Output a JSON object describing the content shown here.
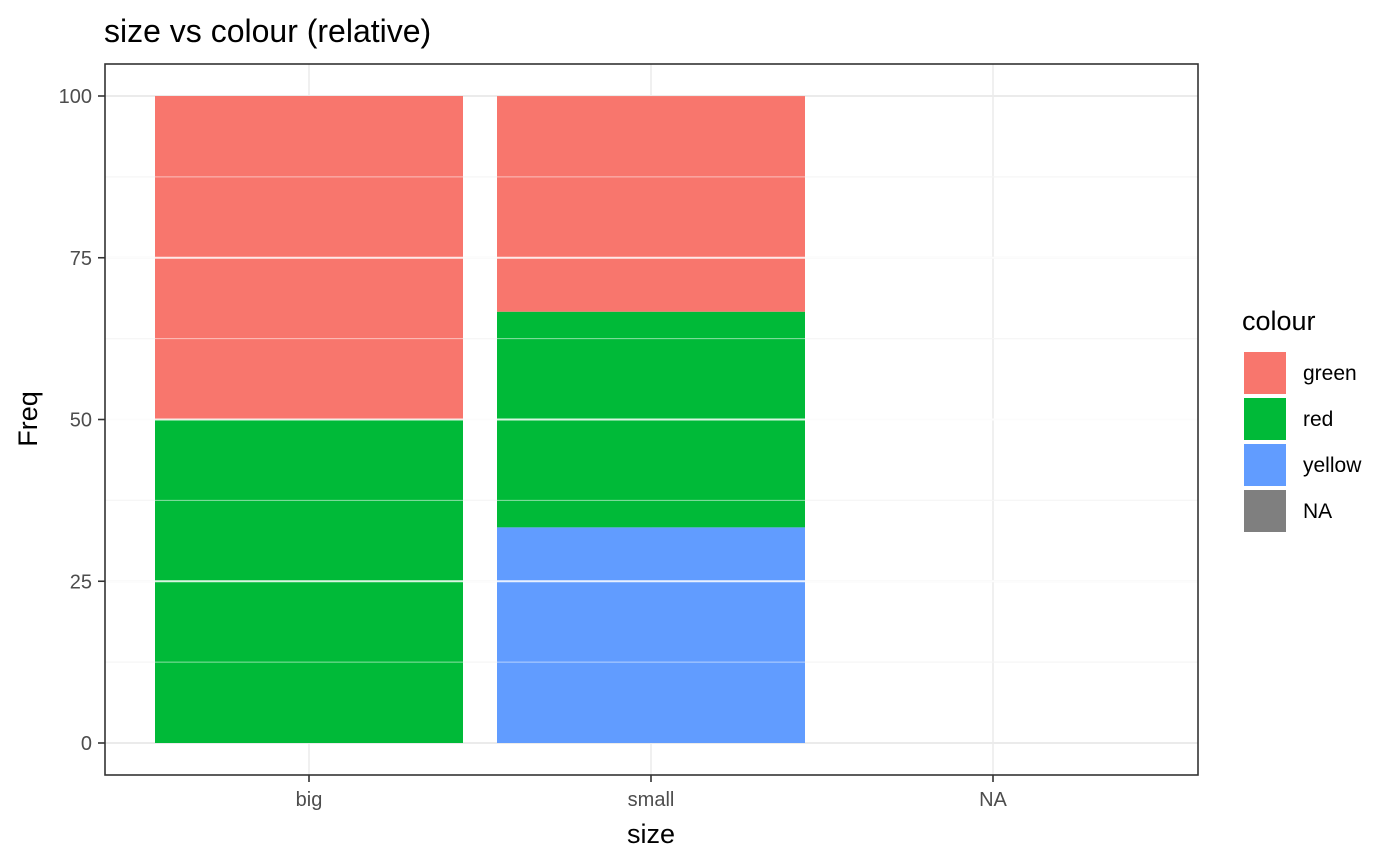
{
  "chart_data": {
    "type": "bar",
    "stacked": true,
    "title": "size vs colour (relative)",
    "xlabel": "size",
    "ylabel": "Freq",
    "categories": [
      "big",
      "small",
      "NA"
    ],
    "ylim": [
      0,
      100
    ],
    "yticks": [
      0,
      25,
      50,
      75,
      100
    ],
    "grid": true,
    "series": [
      {
        "name": "green",
        "color": "#F8766D",
        "values": [
          50,
          33.33,
          0
        ]
      },
      {
        "name": "red",
        "color": "#00BA38",
        "values": [
          50,
          33.33,
          0
        ]
      },
      {
        "name": "yellow",
        "color": "#619CFF",
        "values": [
          0,
          33.33,
          0
        ]
      },
      {
        "name": "NA",
        "color": "#7F7F7F",
        "values": [
          0,
          0,
          0
        ]
      }
    ],
    "legend": {
      "title": "colour",
      "position": "right"
    }
  }
}
